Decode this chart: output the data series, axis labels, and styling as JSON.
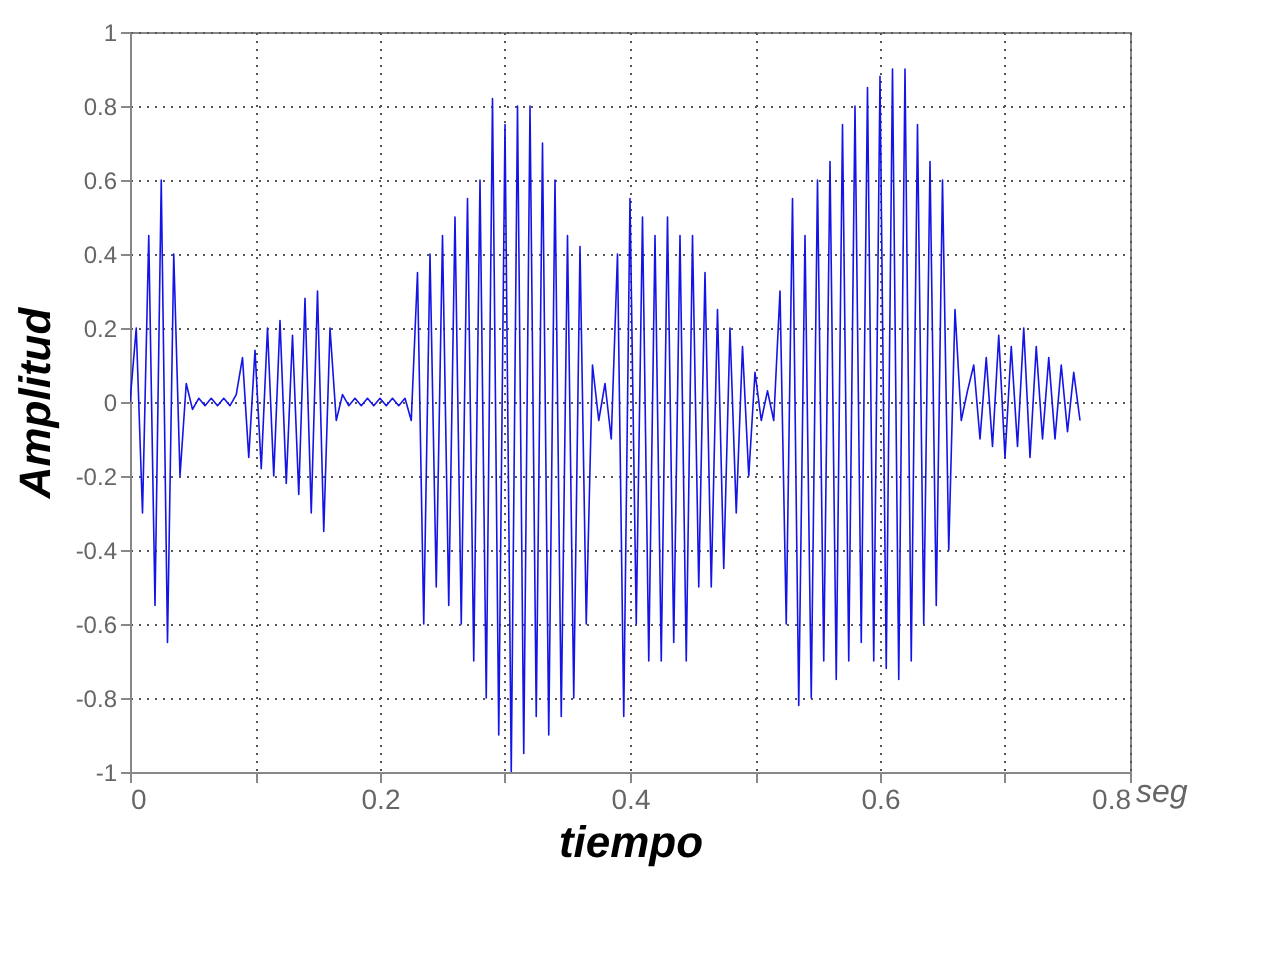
{
  "chart_data": {
    "type": "line",
    "xlabel": "tiempo",
    "ylabel": "Amplitud",
    "annotations": [
      "seg"
    ],
    "xlim": [
      0,
      0.8
    ],
    "ylim": [
      -1,
      1
    ],
    "xticks": [
      0,
      {
        "value": 0.1,
        "label": null
      },
      0.2,
      {
        "value": 0.3,
        "label": null
      },
      0.4,
      {
        "value": 0.5,
        "label": null
      },
      0.6,
      {
        "value": 0.7,
        "label": null
      },
      0.8
    ],
    "yticks": [
      -1,
      -0.8,
      -0.6,
      -0.4,
      -0.2,
      0,
      0.2,
      0.4,
      0.6,
      0.8,
      1
    ],
    "grid": true,
    "line_style": "solid",
    "x": [
      0,
      0.005,
      0.01,
      0.015,
      0.02,
      0.025,
      0.03,
      0.035,
      0.04,
      0.045,
      0.05,
      0.055,
      0.06,
      0.065,
      0.07,
      0.075,
      0.08,
      0.085,
      0.09,
      0.095,
      0.1,
      0.105,
      0.11,
      0.115,
      0.12,
      0.125,
      0.13,
      0.135,
      0.14,
      0.145,
      0.15,
      0.155,
      0.16,
      0.165,
      0.17,
      0.175,
      0.18,
      0.185,
      0.19,
      0.195,
      0.2,
      0.205,
      0.21,
      0.215,
      0.22,
      0.225,
      0.23,
      0.235,
      0.24,
      0.245,
      0.25,
      0.255,
      0.26,
      0.265,
      0.27,
      0.275,
      0.28,
      0.285,
      0.29,
      0.295,
      0.3,
      0.305,
      0.31,
      0.315,
      0.32,
      0.325,
      0.33,
      0.335,
      0.34,
      0.345,
      0.35,
      0.355,
      0.36,
      0.365,
      0.37,
      0.375,
      0.38,
      0.385,
      0.39,
      0.395,
      0.4,
      0.405,
      0.41,
      0.415,
      0.42,
      0.425,
      0.43,
      0.435,
      0.44,
      0.445,
      0.45,
      0.455,
      0.46,
      0.465,
      0.47,
      0.475,
      0.48,
      0.485,
      0.49,
      0.495,
      0.5,
      0.505,
      0.51,
      0.515,
      0.52,
      0.525,
      0.53,
      0.535,
      0.54,
      0.545,
      0.55,
      0.555,
      0.56,
      0.565,
      0.57,
      0.575,
      0.58,
      0.585,
      0.59,
      0.595,
      0.6,
      0.605,
      0.61,
      0.615,
      0.62,
      0.625,
      0.63,
      0.635,
      0.64,
      0.645,
      0.65,
      0.655,
      0.66,
      0.665,
      0.67,
      0.675,
      0.68,
      0.685,
      0.69,
      0.695,
      0.7,
      0.705,
      0.71,
      0.715,
      0.72,
      0.725,
      0.73,
      0.735,
      0.74,
      0.745,
      0.75,
      0.755,
      0.76
    ],
    "series": [
      {
        "color": "#1414e6",
        "values": [
          0,
          0.2,
          -0.3,
          0.45,
          -0.55,
          0.6,
          -0.65,
          0.4,
          -0.2,
          0.05,
          -0.02,
          0.01,
          -0.01,
          0.01,
          -0.01,
          0.01,
          -0.01,
          0.02,
          0.12,
          -0.15,
          0.14,
          -0.18,
          0.2,
          -0.2,
          0.22,
          -0.22,
          0.18,
          -0.25,
          0.28,
          -0.3,
          0.3,
          -0.35,
          0.2,
          -0.05,
          0.02,
          -0.01,
          0.01,
          -0.01,
          0.01,
          -0.01,
          0.01,
          -0.01,
          0.01,
          -0.01,
          0.01,
          -0.05,
          0.35,
          -0.6,
          0.4,
          -0.5,
          0.45,
          -0.55,
          0.5,
          -0.6,
          0.55,
          -0.7,
          0.6,
          -0.8,
          0.82,
          -0.9,
          0.75,
          -1,
          0.8,
          -0.95,
          0.8,
          -0.85,
          0.7,
          -0.9,
          0.6,
          -0.85,
          0.45,
          -0.8,
          0.42,
          -0.6,
          0.1,
          -0.05,
          0.05,
          -0.1,
          0.4,
          -0.85,
          0.55,
          -0.6,
          0.5,
          -0.7,
          0.45,
          -0.7,
          0.5,
          -0.65,
          0.45,
          -0.7,
          0.45,
          -0.5,
          0.35,
          -0.5,
          0.25,
          -0.45,
          0.2,
          -0.3,
          0.15,
          -0.2,
          0.08,
          -0.05,
          0.03,
          -0.05,
          0.3,
          -0.6,
          0.55,
          -0.82,
          0.45,
          -0.8,
          0.6,
          -0.7,
          0.65,
          -0.75,
          0.75,
          -0.7,
          0.8,
          -0.65,
          0.85,
          -0.7,
          0.88,
          -0.72,
          0.9,
          -0.75,
          0.9,
          -0.7,
          0.75,
          -0.6,
          0.65,
          -0.55,
          0.6,
          -0.4,
          0.25,
          -0.05,
          0.03,
          0.1,
          -0.1,
          0.12,
          -0.12,
          0.18,
          -0.15,
          0.15,
          -0.12,
          0.2,
          -0.15,
          0.15,
          -0.1,
          0.12,
          -0.1,
          0.1,
          -0.08,
          0.08,
          -0.05
        ]
      }
    ]
  }
}
